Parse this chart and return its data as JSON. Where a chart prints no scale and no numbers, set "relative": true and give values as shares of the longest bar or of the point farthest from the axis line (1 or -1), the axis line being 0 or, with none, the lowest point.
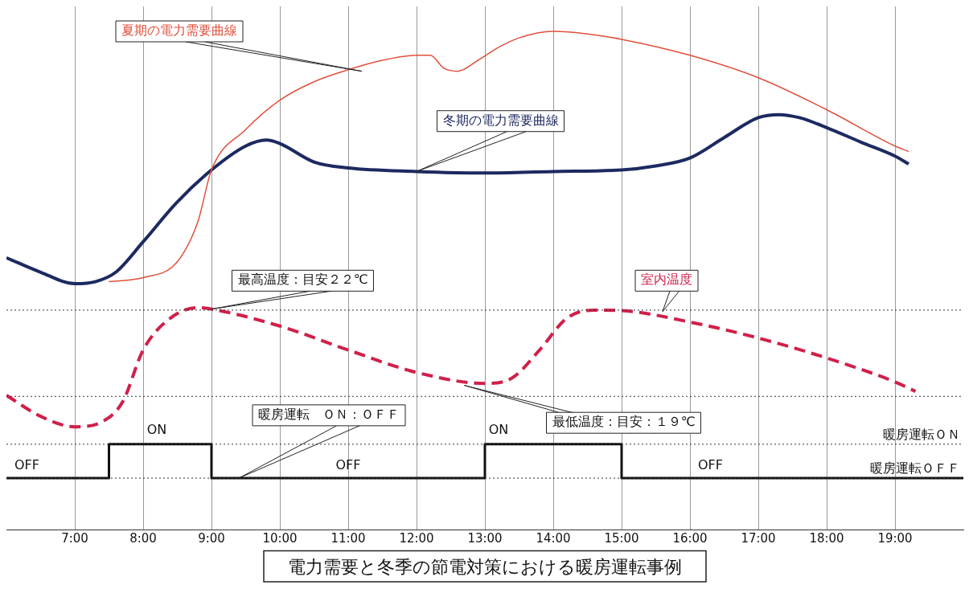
{
  "chart_data": {
    "type": "line",
    "relative": true,
    "title": "電力需要と冬季の節電対策における暖房運転事例",
    "xlim": [
      6,
      20
    ],
    "xticks": [
      {
        "value": 7,
        "label": "7:00"
      },
      {
        "value": 8,
        "label": "8:00"
      },
      {
        "value": 9,
        "label": "9:00"
      },
      {
        "value": 10,
        "label": "10:00"
      },
      {
        "value": 11,
        "label": "11:00"
      },
      {
        "value": 12,
        "label": "12:00"
      },
      {
        "value": 13,
        "label": "13:00"
      },
      {
        "value": 14,
        "label": "14:00"
      },
      {
        "value": 15,
        "label": "15:00"
      },
      {
        "value": 16,
        "label": "16:00"
      },
      {
        "value": 17,
        "label": "17:00"
      },
      {
        "value": 18,
        "label": "18:00"
      },
      {
        "value": 19,
        "label": "19:00"
      }
    ],
    "grid": "x",
    "legend": false,
    "tick_labels": "x",
    "series": [
      {
        "name": "夏期の電力需要曲線",
        "color": "#e0503c",
        "x": [
          7.5,
          8,
          8.5,
          8.8,
          9,
          9.5,
          10,
          10.5,
          11,
          11.5,
          12,
          12.2,
          12.4,
          12.6,
          12.9,
          13.2,
          13.5,
          14,
          14.5,
          15,
          16,
          17,
          18,
          19,
          19.2
        ],
        "values": [
          0.498,
          0.506,
          0.538,
          0.618,
          0.722,
          0.803,
          0.862,
          0.899,
          0.923,
          0.942,
          0.952,
          0.952,
          0.926,
          0.92,
          0.942,
          0.968,
          0.987,
          1,
          0.995,
          0.984,
          0.952,
          0.907,
          0.843,
          0.77,
          0.759
        ]
      },
      {
        "name": "冬期の電力需要曲線",
        "color": "#1c2a60",
        "x": [
          6,
          6.5,
          7,
          7.3,
          7.6,
          8,
          8.5,
          9,
          9.5,
          9.8,
          10,
          10.5,
          11,
          12,
          13,
          14,
          15,
          15.5,
          16,
          16.5,
          17,
          17.3,
          17.6,
          18,
          18.5,
          19,
          19.2
        ],
        "values": [
          0.546,
          0.517,
          0.494,
          0.498,
          0.517,
          0.578,
          0.658,
          0.722,
          0.77,
          0.782,
          0.775,
          0.738,
          0.726,
          0.719,
          0.716,
          0.719,
          0.722,
          0.73,
          0.746,
          0.787,
          0.827,
          0.833,
          0.827,
          0.807,
          0.778,
          0.75,
          0.734
        ]
      },
      {
        "name": "室内温度",
        "color": "#d0204a",
        "line_style": "dashed",
        "x": [
          6,
          6.5,
          7,
          7.4,
          7.7,
          8,
          8.4,
          8.8,
          9,
          10,
          11,
          12,
          13,
          13.4,
          13.8,
          14.2,
          14.6,
          15,
          16,
          17,
          18,
          19,
          19.3
        ],
        "values": [
          0.27,
          0.228,
          0.207,
          0.217,
          0.257,
          0.361,
          0.425,
          0.446,
          0.443,
          0.409,
          0.361,
          0.316,
          0.294,
          0.305,
          0.361,
          0.425,
          0.441,
          0.44,
          0.417,
          0.385,
          0.345,
          0.297,
          0.278
        ]
      },
      {
        "name": "暖房運転　ＯＮ：ＯＦＦ",
        "type": "step",
        "color": "#111111",
        "x": [
          6,
          7.5,
          9,
          13,
          15,
          20
        ],
        "values": [
          0.104,
          0.172,
          0.104,
          0.172,
          0.104,
          0.104
        ]
      }
    ],
    "ref_lines": [
      {
        "axis": "y",
        "value": 0.441,
        "label": "最高温度：目安２２℃",
        "line_style": "dotted"
      },
      {
        "axis": "y",
        "value": 0.268,
        "label": "最低温度：目安：１９℃",
        "line_style": "dotted"
      },
      {
        "axis": "y",
        "value": 0.172,
        "label": "暖房運転ＯＮ",
        "line_style": "dotted"
      },
      {
        "axis": "y",
        "value": 0.104,
        "label": "暖房運転ＯＦＦ",
        "line_style": "dotted"
      }
    ],
    "annotations": [
      "ON",
      "OFF",
      "ON",
      "OFF",
      "OFF"
    ]
  }
}
